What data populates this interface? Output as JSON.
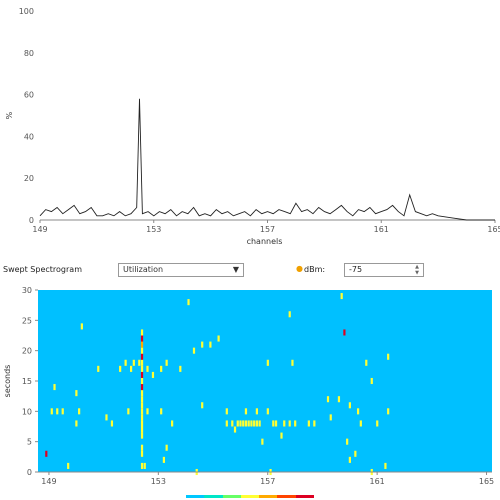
{
  "chart_data": [
    {
      "type": "line",
      "ylabel": "%",
      "xlabel": "channels",
      "ylim": [
        0,
        100
      ],
      "xlim": [
        149,
        165
      ],
      "yticks": [
        "0",
        "20",
        "40",
        "60",
        "80",
        "100"
      ],
      "xticks": [
        "149",
        "153",
        "157",
        "161",
        "165"
      ],
      "grid": false,
      "x": [
        149.0,
        149.2,
        149.4,
        149.6,
        149.8,
        150.0,
        150.2,
        150.4,
        150.6,
        150.8,
        151.0,
        151.2,
        151.4,
        151.6,
        151.8,
        152.0,
        152.2,
        152.4,
        152.5,
        152.6,
        152.8,
        153.0,
        153.2,
        153.4,
        153.6,
        153.8,
        154.0,
        154.2,
        154.4,
        154.6,
        154.8,
        155.0,
        155.2,
        155.4,
        155.6,
        155.8,
        156.0,
        156.2,
        156.4,
        156.6,
        156.8,
        157.0,
        157.2,
        157.4,
        157.6,
        157.8,
        158.0,
        158.2,
        158.4,
        158.6,
        158.8,
        159.0,
        159.2,
        159.4,
        159.6,
        159.8,
        160.0,
        160.2,
        160.4,
        160.6,
        160.8,
        161.0,
        161.2,
        161.4,
        161.6,
        161.8,
        162.0,
        162.2,
        162.4,
        162.6,
        162.8,
        163.0,
        163.5,
        164.0,
        164.5,
        165.0
      ],
      "y": [
        2,
        5,
        4,
        6,
        3,
        5,
        7,
        3,
        4,
        6,
        2,
        2,
        3,
        2,
        4,
        2,
        3,
        6,
        58,
        3,
        4,
        2,
        4,
        3,
        5,
        2,
        4,
        3,
        6,
        2,
        3,
        2,
        5,
        3,
        4,
        2,
        3,
        4,
        2,
        5,
        3,
        4,
        3,
        5,
        4,
        3,
        8,
        4,
        5,
        3,
        6,
        4,
        3,
        5,
        7,
        4,
        2,
        5,
        4,
        6,
        3,
        4,
        5,
        7,
        4,
        2,
        12,
        4,
        3,
        2,
        3,
        2,
        1,
        0,
        0,
        0
      ]
    },
    {
      "type": "heatmap",
      "ylabel": "seconds",
      "ylim": [
        0,
        30
      ],
      "xlim": [
        148.6,
        165.2
      ],
      "yticks": [
        "0",
        "5",
        "10",
        "15",
        "20",
        "25",
        "30"
      ],
      "xticks": [
        "149",
        "153",
        "157",
        "161",
        "165"
      ],
      "background": "#00c0ff",
      "colorscale": [
        "#00c8ff",
        "#00e6c8",
        "#66ff66",
        "#ffff33",
        "#ffaa00",
        "#ff4400",
        "#dd0022"
      ],
      "cells": [
        {
          "x": 152.4,
          "y": 1,
          "c": "#ffff33"
        },
        {
          "x": 152.4,
          "y": 3,
          "c": "#ffff33"
        },
        {
          "x": 152.4,
          "y": 4,
          "c": "#ffff33"
        },
        {
          "x": 152.4,
          "y": 6,
          "c": "#ffff33"
        },
        {
          "x": 152.4,
          "y": 7,
          "c": "#ffff33"
        },
        {
          "x": 152.4,
          "y": 8,
          "c": "#ffff33"
        },
        {
          "x": 152.4,
          "y": 9,
          "c": "#ffff33"
        },
        {
          "x": 152.4,
          "y": 10,
          "c": "#ffff33"
        },
        {
          "x": 152.4,
          "y": 11,
          "c": "#ffff33"
        },
        {
          "x": 152.4,
          "y": 12,
          "c": "#ffff33"
        },
        {
          "x": 152.4,
          "y": 13,
          "c": "#ffff33"
        },
        {
          "x": 152.4,
          "y": 14,
          "c": "#dd0022"
        },
        {
          "x": 152.4,
          "y": 15,
          "c": "#ffff33"
        },
        {
          "x": 152.4,
          "y": 16,
          "c": "#dd0022"
        },
        {
          "x": 152.4,
          "y": 17,
          "c": "#ffff33"
        },
        {
          "x": 152.4,
          "y": 18,
          "c": "#ffff33"
        },
        {
          "x": 152.4,
          "y": 19,
          "c": "#dd0022"
        },
        {
          "x": 152.4,
          "y": 20,
          "c": "#ffff33"
        },
        {
          "x": 152.4,
          "y": 21,
          "c": "#ffaa00"
        },
        {
          "x": 152.4,
          "y": 22,
          "c": "#dd0022"
        },
        {
          "x": 152.4,
          "y": 23,
          "c": "#ffff33"
        },
        {
          "x": 148.9,
          "y": 3,
          "c": "#dd0022"
        },
        {
          "x": 149.1,
          "y": 10,
          "c": "#ffff33"
        },
        {
          "x": 149.2,
          "y": 14,
          "c": "#ffff33"
        },
        {
          "x": 149.3,
          "y": 10,
          "c": "#ffff33"
        },
        {
          "x": 149.5,
          "y": 10,
          "c": "#ffff33"
        },
        {
          "x": 149.7,
          "y": 1,
          "c": "#ffff33"
        },
        {
          "x": 150.0,
          "y": 8,
          "c": "#ffff33"
        },
        {
          "x": 150.0,
          "y": 13,
          "c": "#ffff33"
        },
        {
          "x": 150.1,
          "y": 10,
          "c": "#ffff33"
        },
        {
          "x": 150.2,
          "y": 24,
          "c": "#ffff33"
        },
        {
          "x": 150.8,
          "y": 17,
          "c": "#ffff33"
        },
        {
          "x": 151.1,
          "y": 9,
          "c": "#ffff33"
        },
        {
          "x": 151.3,
          "y": 8,
          "c": "#ffff33"
        },
        {
          "x": 151.6,
          "y": 17,
          "c": "#ffff33"
        },
        {
          "x": 151.8,
          "y": 18,
          "c": "#ffff33"
        },
        {
          "x": 151.9,
          "y": 10,
          "c": "#ffff33"
        },
        {
          "x": 152.0,
          "y": 17,
          "c": "#ffff33"
        },
        {
          "x": 152.1,
          "y": 18,
          "c": "#ffff33"
        },
        {
          "x": 152.3,
          "y": 18,
          "c": "#ffff33"
        },
        {
          "x": 152.5,
          "y": 1,
          "c": "#ffff33"
        },
        {
          "x": 152.6,
          "y": 10,
          "c": "#ffff33"
        },
        {
          "x": 152.6,
          "y": 17,
          "c": "#ffff33"
        },
        {
          "x": 152.8,
          "y": 16,
          "c": "#ffff33"
        },
        {
          "x": 153.1,
          "y": 10,
          "c": "#ffff33"
        },
        {
          "x": 153.1,
          "y": 17,
          "c": "#ffff33"
        },
        {
          "x": 153.2,
          "y": 2,
          "c": "#ffff33"
        },
        {
          "x": 153.3,
          "y": 18,
          "c": "#ffff33"
        },
        {
          "x": 153.3,
          "y": 4,
          "c": "#ffff33"
        },
        {
          "x": 153.5,
          "y": 8,
          "c": "#ffff33"
        },
        {
          "x": 153.8,
          "y": 17,
          "c": "#ffff33"
        },
        {
          "x": 154.1,
          "y": 28,
          "c": "#ffff33"
        },
        {
          "x": 154.3,
          "y": 20,
          "c": "#ffff33"
        },
        {
          "x": 154.4,
          "y": 0,
          "c": "#ffff33"
        },
        {
          "x": 154.6,
          "y": 21,
          "c": "#ffff33"
        },
        {
          "x": 154.6,
          "y": 11,
          "c": "#ffff33"
        },
        {
          "x": 154.9,
          "y": 21,
          "c": "#ffff33"
        },
        {
          "x": 155.2,
          "y": 22,
          "c": "#ffff33"
        },
        {
          "x": 155.5,
          "y": 10,
          "c": "#ffff33"
        },
        {
          "x": 155.5,
          "y": 8,
          "c": "#ffff33"
        },
        {
          "x": 155.7,
          "y": 8,
          "c": "#ffff33"
        },
        {
          "x": 155.8,
          "y": 7,
          "c": "#ffff33"
        },
        {
          "x": 155.9,
          "y": 8,
          "c": "#ffff33"
        },
        {
          "x": 156.0,
          "y": 8,
          "c": "#ffff33"
        },
        {
          "x": 156.1,
          "y": 8,
          "c": "#ffff33"
        },
        {
          "x": 156.2,
          "y": 10,
          "c": "#ffff33"
        },
        {
          "x": 156.2,
          "y": 8,
          "c": "#ffff33"
        },
        {
          "x": 156.3,
          "y": 8,
          "c": "#ffff33"
        },
        {
          "x": 156.4,
          "y": 8,
          "c": "#ffff33"
        },
        {
          "x": 156.5,
          "y": 8,
          "c": "#ffff33"
        },
        {
          "x": 156.6,
          "y": 10,
          "c": "#ffff33"
        },
        {
          "x": 156.6,
          "y": 8,
          "c": "#ffff33"
        },
        {
          "x": 156.7,
          "y": 8,
          "c": "#ffff33"
        },
        {
          "x": 156.8,
          "y": 5,
          "c": "#ffff33"
        },
        {
          "x": 157.0,
          "y": 18,
          "c": "#ffff33"
        },
        {
          "x": 157.0,
          "y": 10,
          "c": "#ffff33"
        },
        {
          "x": 157.1,
          "y": 0,
          "c": "#ffff33"
        },
        {
          "x": 157.2,
          "y": 8,
          "c": "#ffff33"
        },
        {
          "x": 157.3,
          "y": 8,
          "c": "#ffff33"
        },
        {
          "x": 157.5,
          "y": 6,
          "c": "#ffff33"
        },
        {
          "x": 157.6,
          "y": 8,
          "c": "#ffff33"
        },
        {
          "x": 157.8,
          "y": 8,
          "c": "#ffff33"
        },
        {
          "x": 157.8,
          "y": 26,
          "c": "#ffff33"
        },
        {
          "x": 157.9,
          "y": 18,
          "c": "#ffff33"
        },
        {
          "x": 158.0,
          "y": 8,
          "c": "#ffff33"
        },
        {
          "x": 158.5,
          "y": 8,
          "c": "#ffff33"
        },
        {
          "x": 158.7,
          "y": 8,
          "c": "#ffff33"
        },
        {
          "x": 159.2,
          "y": 12,
          "c": "#ffff33"
        },
        {
          "x": 159.3,
          "y": 9,
          "c": "#ffff33"
        },
        {
          "x": 159.6,
          "y": 12,
          "c": "#ffff33"
        },
        {
          "x": 159.7,
          "y": 29,
          "c": "#ffff33"
        },
        {
          "x": 159.8,
          "y": 23,
          "c": "#dd0022"
        },
        {
          "x": 159.9,
          "y": 5,
          "c": "#ffff33"
        },
        {
          "x": 160.0,
          "y": 2,
          "c": "#ffff33"
        },
        {
          "x": 160.0,
          "y": 11,
          "c": "#ffff33"
        },
        {
          "x": 160.2,
          "y": 3,
          "c": "#ffff33"
        },
        {
          "x": 160.3,
          "y": 10,
          "c": "#ffff33"
        },
        {
          "x": 160.4,
          "y": 8,
          "c": "#ffff33"
        },
        {
          "x": 160.6,
          "y": 18,
          "c": "#ffff33"
        },
        {
          "x": 160.8,
          "y": 0,
          "c": "#ffff33"
        },
        {
          "x": 160.8,
          "y": 15,
          "c": "#ffff33"
        },
        {
          "x": 161.0,
          "y": 8,
          "c": "#ffff33"
        },
        {
          "x": 161.3,
          "y": 1,
          "c": "#ffff33"
        },
        {
          "x": 161.4,
          "y": 10,
          "c": "#ffff33"
        },
        {
          "x": 161.4,
          "y": 19,
          "c": "#ffff33"
        }
      ]
    }
  ],
  "spectrogram_controls": {
    "title": "Swept Spectrogram",
    "view_select": "Utilization",
    "dbm_label": "dBm:",
    "dbm_value": "-75"
  }
}
